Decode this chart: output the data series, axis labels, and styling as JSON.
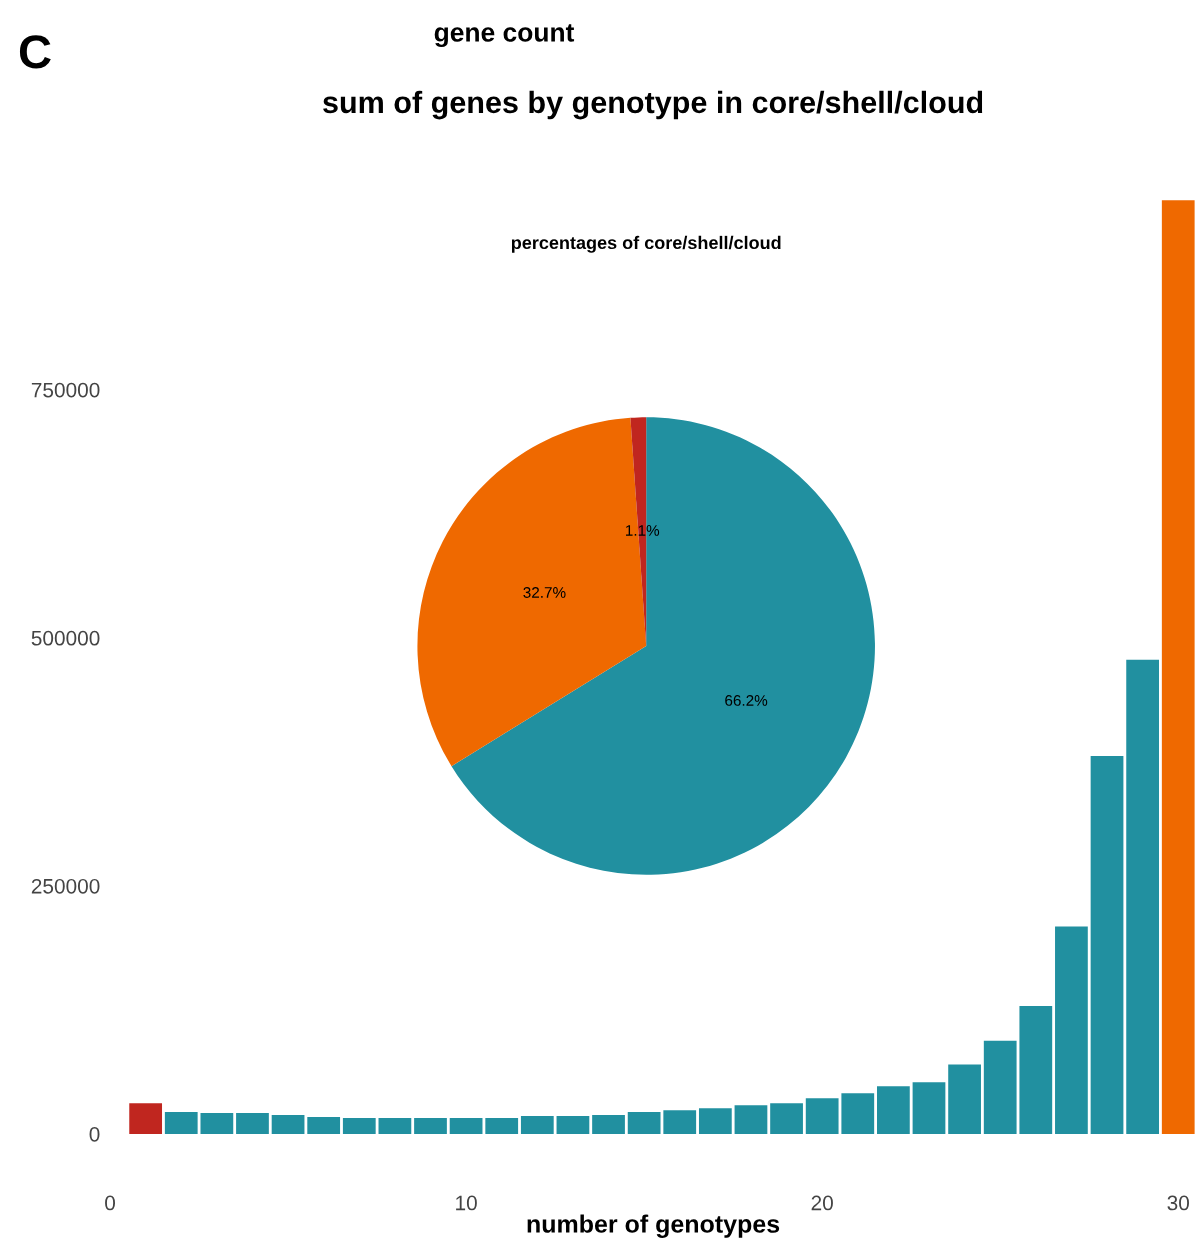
{
  "chart_data": [
    {
      "type": "bar",
      "title": "sum of genes by genotype in core/shell/cloud",
      "xlabel": "number of genotypes",
      "x": [
        1,
        2,
        3,
        4,
        5,
        6,
        7,
        8,
        9,
        10,
        11,
        12,
        13,
        14,
        15,
        16,
        17,
        18,
        19,
        20,
        21,
        22,
        23,
        24,
        25,
        26,
        27,
        28,
        29,
        30
      ],
      "values": [
        31000,
        22000,
        21000,
        21000,
        19000,
        17000,
        16000,
        16000,
        16000,
        16000,
        16000,
        18000,
        18000,
        19000,
        22000,
        24000,
        26000,
        29000,
        31000,
        36000,
        41000,
        48000,
        52000,
        70000,
        94000,
        129000,
        209000,
        381000,
        478000,
        941000
      ],
      "colors": [
        "#c0261f",
        "#2190a0",
        "#2190a0",
        "#2190a0",
        "#2190a0",
        "#2190a0",
        "#2190a0",
        "#2190a0",
        "#2190a0",
        "#2190a0",
        "#2190a0",
        "#2190a0",
        "#2190a0",
        "#2190a0",
        "#2190a0",
        "#2190a0",
        "#2190a0",
        "#2190a0",
        "#2190a0",
        "#2190a0",
        "#2190a0",
        "#2190a0",
        "#2190a0",
        "#2190a0",
        "#2190a0",
        "#2190a0",
        "#2190a0",
        "#2190a0",
        "#2190a0",
        "#ef6900"
      ],
      "xlim": [
        0,
        30.5
      ],
      "xticks": [
        0,
        10,
        20,
        30
      ],
      "ylim": [
        0,
        945000
      ],
      "yticks": [
        0,
        250000,
        500000,
        750000
      ],
      "grid": false,
      "annotations": [
        "C",
        "gene count"
      ]
    },
    {
      "type": "pie",
      "title": "percentages of core/shell/cloud",
      "categories": [
        null,
        null,
        null
      ],
      "values": [
        66.2,
        32.7,
        1.1
      ],
      "value_labels": [
        "66.2%",
        "32.7%",
        "1.1%"
      ],
      "colors": [
        "#2190a0",
        "#ef6900",
        "#c0261f"
      ]
    }
  ]
}
